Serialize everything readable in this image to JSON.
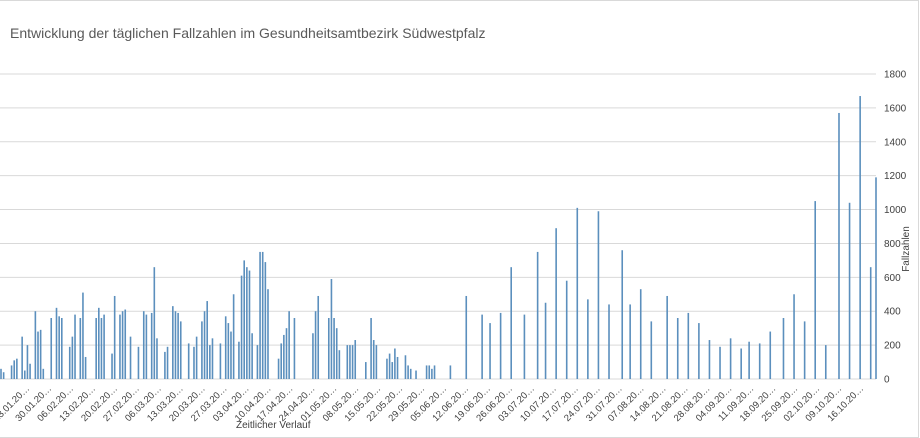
{
  "chart_data": {
    "type": "bar",
    "title": "Entwicklung der täglichen Fallzahlen im Gesundheitsamtbezirk Südwestpfalz",
    "xlabel": "Zeitlicher Verlauf",
    "ylabel": "Fallzahlen",
    "ylim": [
      0,
      1800
    ],
    "yticks": [
      0,
      200,
      400,
      600,
      800,
      1000,
      1200,
      1400,
      1600,
      1800
    ],
    "grid": true,
    "y_axis_position": "right",
    "bar_color": "#5b8fbd",
    "x_tick_labels": [
      "23.01.20…",
      "30.01.20…",
      "06.02.20…",
      "13.02.20…",
      "20.02.20…",
      "27.02.20…",
      "06.03.20…",
      "13.03.20…",
      "20.03.20…",
      "27.03.20…",
      "03.04.20…",
      "10.04.20…",
      "17.04.20…",
      "24.04.20…",
      "01.05.20…",
      "08.05.20…",
      "15.05.20…",
      "22.05.20…",
      "29.05.20…",
      "05.06.20…",
      "12.06.20…",
      "19.06.20…",
      "26.06.20…",
      "03.07.20…",
      "10.07.20…",
      "17.07.20…",
      "24.07.20…",
      "31.07.20…",
      "07.08.20…",
      "14.08.20…",
      "21.08.20…",
      "28.08.20…",
      "04.09.20…",
      "11.09.20…",
      "18.09.20…",
      "25.09.20…",
      "02.10.20…",
      "09.10.20…",
      "16.10.20…"
    ],
    "values": [
      60,
      40,
      0,
      0,
      80,
      110,
      120,
      0,
      250,
      50,
      200,
      90,
      0,
      400,
      280,
      290,
      60,
      0,
      0,
      360,
      0,
      420,
      370,
      360,
      0,
      0,
      190,
      250,
      380,
      0,
      360,
      510,
      130,
      0,
      0,
      0,
      360,
      420,
      360,
      380,
      0,
      0,
      150,
      490,
      0,
      380,
      400,
      410,
      0,
      250,
      0,
      0,
      190,
      0,
      400,
      380,
      0,
      390,
      660,
      240,
      0,
      0,
      160,
      190,
      0,
      430,
      400,
      390,
      340,
      0,
      0,
      210,
      0,
      190,
      250,
      0,
      340,
      400,
      460,
      200,
      240,
      0,
      0,
      210,
      0,
      370,
      330,
      280,
      500,
      0,
      220,
      610,
      700,
      660,
      640,
      270,
      0,
      200,
      750,
      750,
      690,
      530,
      0,
      0,
      0,
      120,
      210,
      260,
      300,
      400,
      0,
      360,
      0,
      0,
      0,
      0,
      0,
      0,
      270,
      400,
      490,
      0,
      0,
      0,
      360,
      590,
      360,
      300,
      170,
      0,
      0,
      200,
      200,
      200,
      230,
      0,
      0,
      0,
      100,
      0,
      360,
      230,
      200,
      0,
      0,
      0,
      120,
      150,
      100,
      180,
      130,
      0,
      0,
      140,
      80,
      60,
      0,
      50,
      0,
      0,
      0,
      80,
      80,
      60,
      80,
      0,
      0,
      0,
      0,
      0,
      80,
      0,
      0,
      0,
      0,
      0,
      490,
      0,
      0,
      0,
      0,
      0,
      380,
      0,
      0,
      330,
      0,
      0,
      0,
      390,
      0,
      0,
      0,
      660,
      0,
      0,
      0,
      0,
      380,
      0,
      0,
      0,
      0,
      750,
      0,
      0,
      450,
      0,
      0,
      0,
      890,
      0,
      0,
      0,
      580,
      0,
      0,
      0,
      1010,
      0,
      0,
      0,
      470,
      0,
      0,
      0,
      990,
      0,
      0,
      0,
      440,
      0,
      0,
      0,
      0,
      760,
      0,
      0,
      440,
      0,
      0,
      0,
      530,
      0,
      0,
      0,
      340,
      0,
      0,
      0,
      0,
      0,
      490,
      0,
      0,
      0,
      360,
      0,
      0,
      0,
      390,
      0,
      0,
      0,
      330,
      0,
      0,
      0,
      230,
      0,
      0,
      0,
      190,
      0,
      0,
      0,
      240,
      0,
      0,
      0,
      180,
      0,
      0,
      220,
      0,
      0,
      0,
      210,
      0,
      0,
      0,
      280,
      0,
      0,
      0,
      0,
      360,
      0,
      0,
      0,
      500,
      0,
      0,
      0,
      340,
      0,
      0,
      0,
      1050,
      0,
      0,
      0,
      200,
      0,
      0,
      0,
      0,
      1570,
      0,
      0,
      0,
      1040,
      0,
      0,
      0,
      1670,
      0,
      0,
      0,
      660,
      0,
      1190
    ]
  }
}
